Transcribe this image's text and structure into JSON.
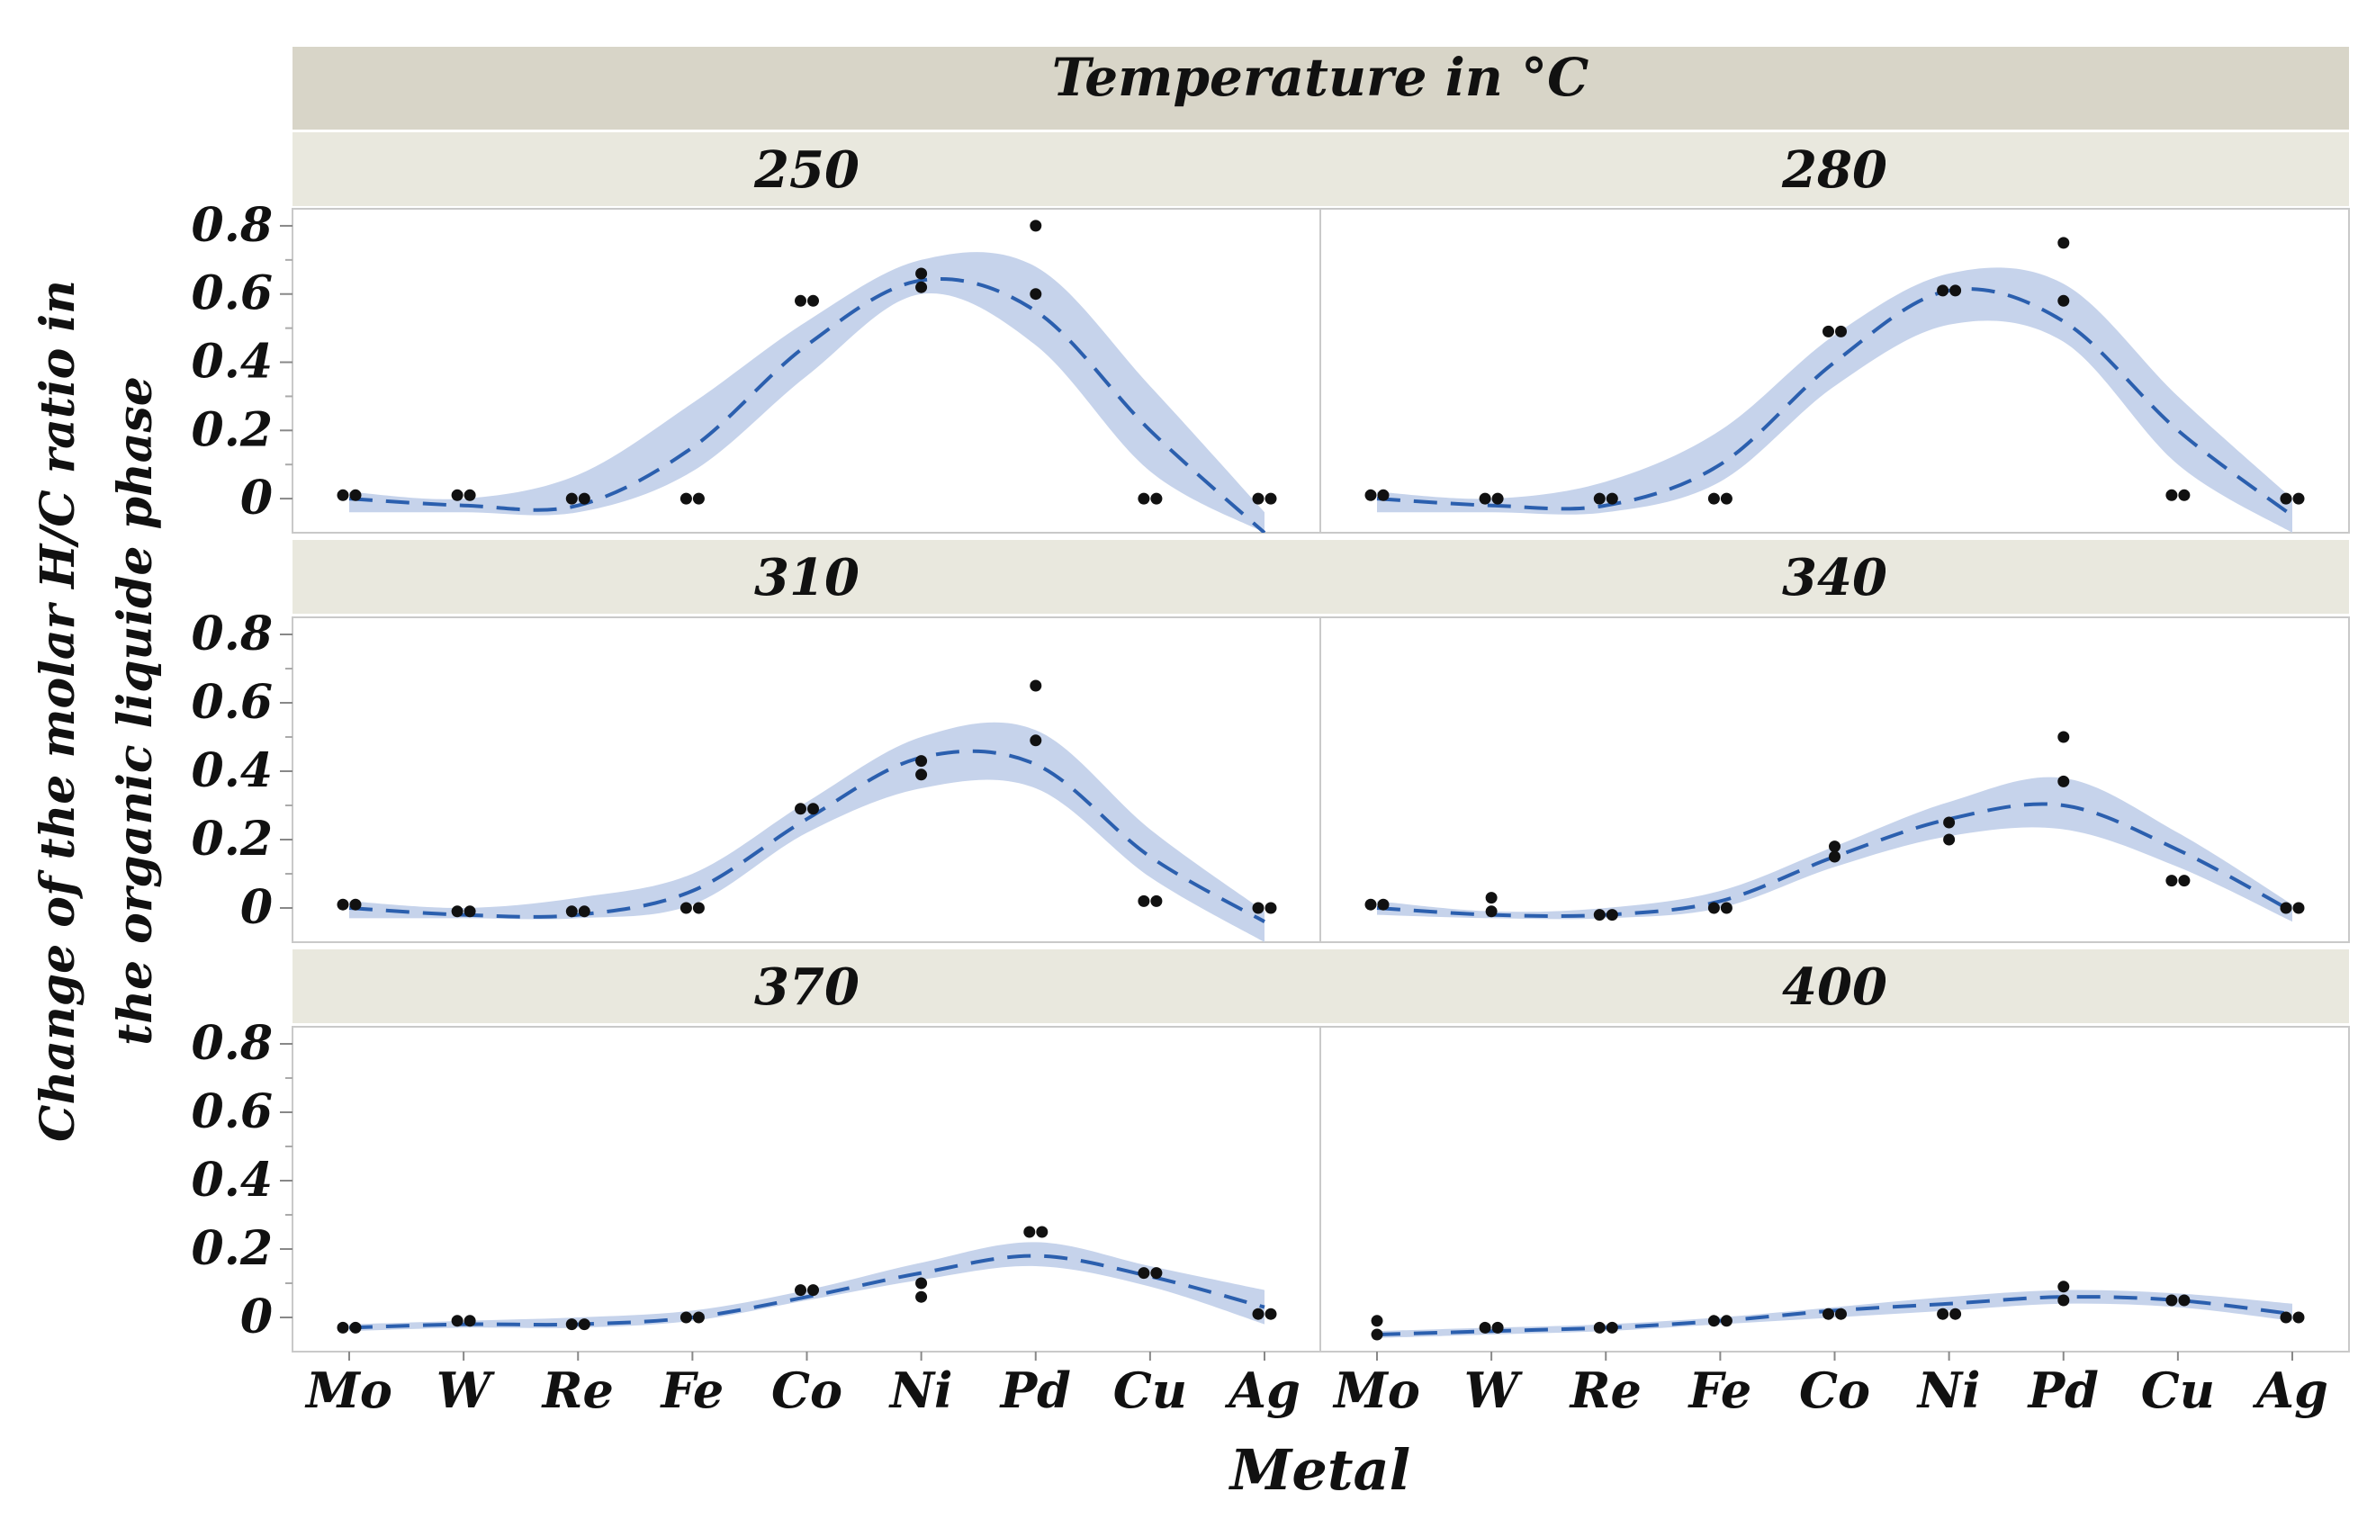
{
  "chart_data": {
    "type": "scatter",
    "title": "Temperature in °C",
    "xlabel": "Metal",
    "ylabel": [
      "Change of the molar H/C ratio in",
      "the organic liquide phase"
    ],
    "categories": [
      "Mo",
      "W",
      "Re",
      "Fe",
      "Co",
      "Ni",
      "Pd",
      "Cu",
      "Ag"
    ],
    "ylim": [
      -0.1,
      0.85
    ],
    "yticks": [
      0,
      0.2,
      0.4,
      0.6,
      0.8
    ],
    "ytick_labels": [
      "0",
      "0.2",
      "0.4",
      "0.6",
      "0.8"
    ],
    "colors": {
      "fit": "#2b5fae",
      "band": "#c6d3eb",
      "points": "#111111",
      "header": "#e9e8de",
      "title_bar": "#d8d5c8"
    },
    "panels": [
      {
        "label": "250",
        "points": [
          [
            0.01,
            0.01
          ],
          [
            0.01,
            0.01
          ],
          [
            0.0,
            0.0
          ],
          [
            0.0,
            0.0
          ],
          [
            0.58,
            0.58
          ],
          [
            0.66,
            0.62
          ],
          [
            0.8,
            0.6
          ],
          [
            0.0,
            0.0
          ],
          [
            0.0,
            0.0
          ]
        ],
        "fit": [
          0.0,
          -0.02,
          -0.02,
          0.15,
          0.45,
          0.64,
          0.55,
          0.2,
          -0.1
        ],
        "band": [
          [
            -0.04,
            0.02
          ],
          [
            -0.04,
            0.0
          ],
          [
            -0.04,
            0.07
          ],
          [
            0.08,
            0.28
          ],
          [
            0.36,
            0.52
          ],
          [
            0.6,
            0.7
          ],
          [
            0.45,
            0.68
          ],
          [
            0.08,
            0.33
          ],
          [
            -0.1,
            -0.04
          ]
        ]
      },
      {
        "label": "280",
        "points": [
          [
            0.01,
            0.01
          ],
          [
            0.0,
            0.0
          ],
          [
            0.0,
            0.0
          ],
          [
            0.0,
            0.0
          ],
          [
            0.49,
            0.49
          ],
          [
            0.61,
            0.61
          ],
          [
            0.75,
            0.58
          ],
          [
            0.01,
            0.01
          ],
          [
            0.0,
            0.0
          ]
        ],
        "fit": [
          0.0,
          -0.02,
          -0.02,
          0.1,
          0.4,
          0.61,
          0.52,
          0.2,
          -0.05
        ],
        "band": [
          [
            -0.04,
            0.02
          ],
          [
            -0.04,
            0.0
          ],
          [
            -0.04,
            0.05
          ],
          [
            0.05,
            0.2
          ],
          [
            0.33,
            0.48
          ],
          [
            0.51,
            0.66
          ],
          [
            0.46,
            0.63
          ],
          [
            0.1,
            0.3
          ],
          [
            -0.1,
            0.0
          ]
        ]
      },
      {
        "label": "310",
        "points": [
          [
            0.01,
            0.01
          ],
          [
            -0.01,
            -0.01
          ],
          [
            -0.01,
            -0.01
          ],
          [
            0.0,
            0.0
          ],
          [
            0.29,
            0.29
          ],
          [
            0.43,
            0.39
          ],
          [
            0.65,
            0.49
          ],
          [
            0.02,
            0.02
          ],
          [
            0.0,
            0.0
          ]
        ],
        "fit": [
          0.0,
          -0.02,
          -0.02,
          0.05,
          0.26,
          0.44,
          0.42,
          0.15,
          -0.04
        ],
        "band": [
          [
            -0.03,
            0.02
          ],
          [
            -0.03,
            0.0
          ],
          [
            -0.03,
            0.03
          ],
          [
            0.01,
            0.1
          ],
          [
            0.22,
            0.31
          ],
          [
            0.35,
            0.5
          ],
          [
            0.35,
            0.52
          ],
          [
            0.09,
            0.23
          ],
          [
            -0.1,
            -0.01
          ]
        ]
      },
      {
        "label": "340",
        "points": [
          [
            0.01,
            0.01
          ],
          [
            0.03,
            -0.01
          ],
          [
            -0.02,
            -0.02
          ],
          [
            0.0,
            0.0
          ],
          [
            0.18,
            0.15
          ],
          [
            0.25,
            0.2
          ],
          [
            0.5,
            0.37
          ],
          [
            0.08,
            0.08
          ],
          [
            0.0,
            0.0
          ]
        ],
        "fit": [
          0.0,
          -0.02,
          -0.02,
          0.02,
          0.15,
          0.26,
          0.3,
          0.17,
          -0.01
        ],
        "band": [
          [
            -0.02,
            0.02
          ],
          [
            -0.03,
            -0.01
          ],
          [
            -0.03,
            0.0
          ],
          [
            0.0,
            0.05
          ],
          [
            0.12,
            0.18
          ],
          [
            0.21,
            0.31
          ],
          [
            0.23,
            0.38
          ],
          [
            0.12,
            0.22
          ],
          [
            -0.04,
            0.01
          ]
        ]
      },
      {
        "label": "370",
        "points": [
          [
            -0.03,
            -0.03
          ],
          [
            -0.01,
            -0.01
          ],
          [
            -0.02,
            -0.02
          ],
          [
            0.0,
            0.0
          ],
          [
            0.08,
            0.08
          ],
          [
            0.1,
            0.06
          ],
          [
            0.25,
            0.25
          ],
          [
            0.13,
            0.13
          ],
          [
            0.01,
            0.01
          ]
        ],
        "fit": [
          -0.03,
          -0.02,
          -0.02,
          0.0,
          0.06,
          0.13,
          0.18,
          0.12,
          0.03
        ],
        "band": [
          [
            -0.04,
            -0.02
          ],
          [
            -0.03,
            -0.01
          ],
          [
            -0.03,
            0.0
          ],
          [
            -0.01,
            0.02
          ],
          [
            0.05,
            0.08
          ],
          [
            0.11,
            0.16
          ],
          [
            0.15,
            0.22
          ],
          [
            0.09,
            0.15
          ],
          [
            -0.02,
            0.08
          ]
        ]
      },
      {
        "label": "400",
        "points": [
          [
            -0.01,
            -0.05
          ],
          [
            -0.03,
            -0.03
          ],
          [
            -0.03,
            -0.03
          ],
          [
            -0.01,
            -0.01
          ],
          [
            0.01,
            0.01
          ],
          [
            0.01,
            0.01
          ],
          [
            0.09,
            0.05
          ],
          [
            0.05,
            0.05
          ],
          [
            0.0,
            0.0
          ]
        ],
        "fit": [
          -0.05,
          -0.04,
          -0.03,
          -0.01,
          0.02,
          0.04,
          0.06,
          0.05,
          0.01
        ],
        "band": [
          [
            -0.06,
            -0.04
          ],
          [
            -0.05,
            -0.03
          ],
          [
            -0.04,
            -0.02
          ],
          [
            -0.02,
            0.0
          ],
          [
            0.0,
            0.03
          ],
          [
            0.02,
            0.06
          ],
          [
            0.04,
            0.08
          ],
          [
            0.03,
            0.07
          ],
          [
            -0.01,
            0.04
          ]
        ]
      }
    ]
  }
}
